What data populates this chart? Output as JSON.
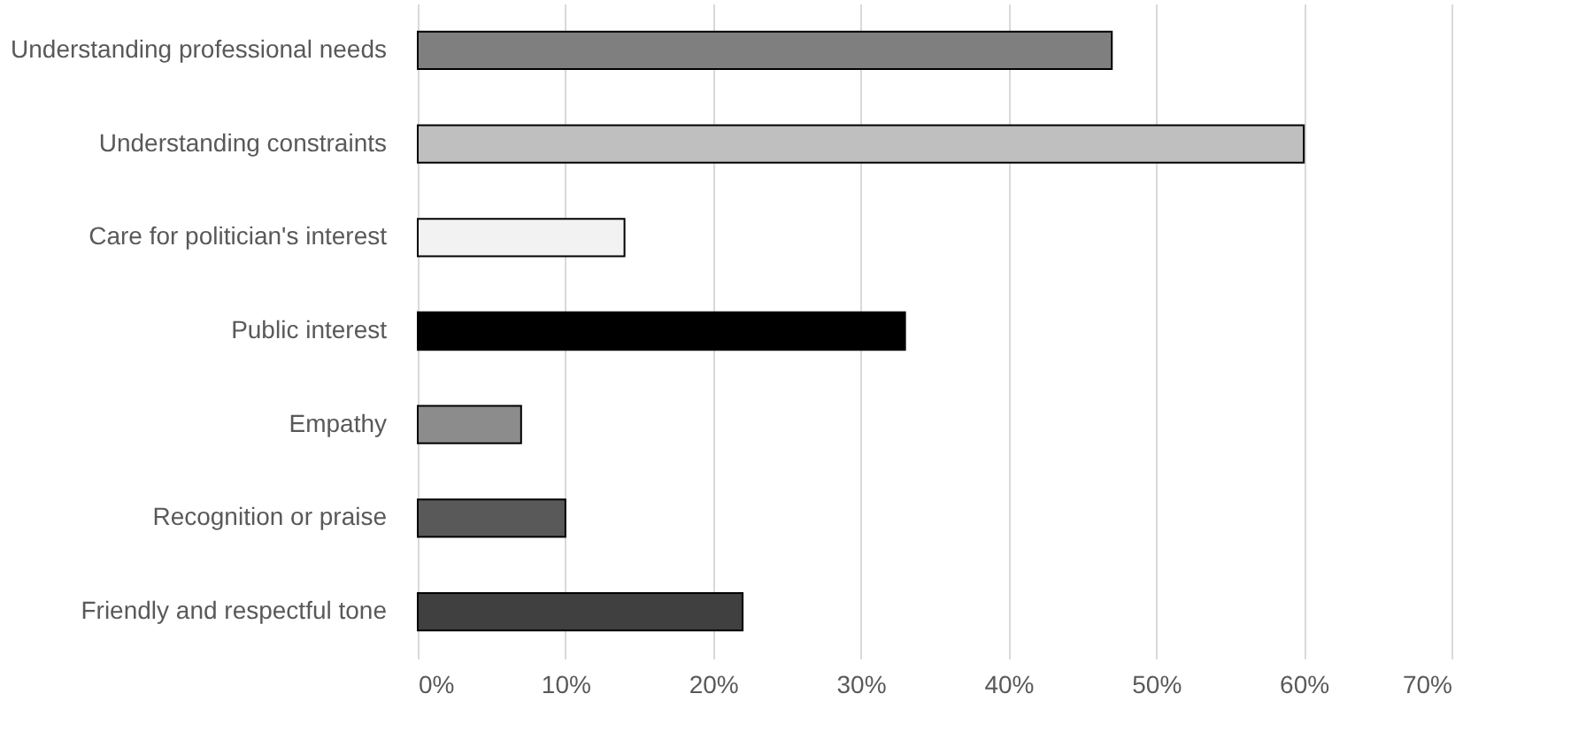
{
  "chart_data": {
    "type": "bar",
    "orientation": "horizontal",
    "categories": [
      "Understanding professional needs",
      "Understanding constraints",
      "Care for politician's interest",
      "Public interest",
      "Empathy",
      "Recognition or praise",
      "Friendly and respectful tone"
    ],
    "values": [
      47,
      60,
      14,
      33,
      7,
      10,
      22
    ],
    "colors": [
      "#7f7f7f",
      "#bfbfbf",
      "#f2f2f2",
      "#000000",
      "#8c8c8c",
      "#595959",
      "#404040"
    ],
    "xlim": [
      0,
      70
    ],
    "xticks": [
      {
        "value": 0,
        "label": "0%"
      },
      {
        "value": 10,
        "label": "10%"
      },
      {
        "value": 20,
        "label": "20%"
      },
      {
        "value": 30,
        "label": "30%"
      },
      {
        "value": 40,
        "label": "40%"
      },
      {
        "value": 50,
        "label": "50%"
      },
      {
        "value": 60,
        "label": "60%"
      },
      {
        "value": 70,
        "label": "70%"
      }
    ],
    "grid": "x",
    "legend": false
  }
}
